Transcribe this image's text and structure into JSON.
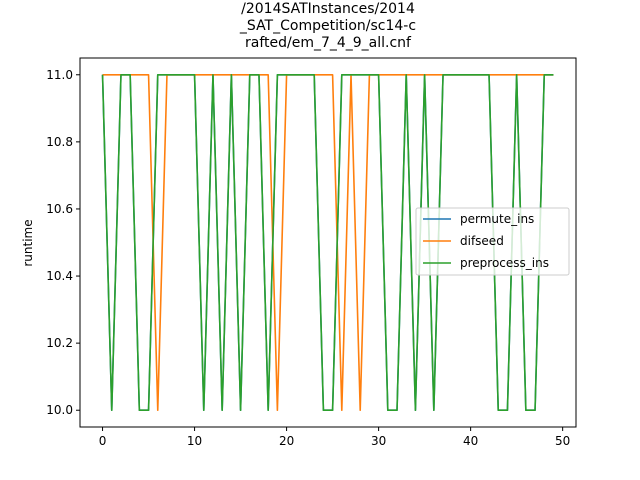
{
  "chart_data": {
    "type": "line",
    "title_lines": [
      "/2014SATInstances/2014",
      "_SAT_Competition/sc14-c",
      "rafted/em_7_4_9_all.cnf"
    ],
    "xlabel": "",
    "ylabel": "runtime",
    "xlim": [
      -2.45,
      51.45
    ],
    "ylim": [
      9.95,
      11.05
    ],
    "xticks": [
      0,
      10,
      20,
      30,
      40,
      50
    ],
    "yticks": [
      10.0,
      10.2,
      10.4,
      10.6,
      10.8,
      11.0
    ],
    "xtick_labels": [
      "0",
      "10",
      "20",
      "30",
      "40",
      "50"
    ],
    "ytick_labels": [
      "10.0",
      "10.2",
      "10.4",
      "10.6",
      "10.8",
      "11.0"
    ],
    "legend_position": "center-right",
    "x": [
      0,
      1,
      2,
      3,
      4,
      5,
      6,
      7,
      8,
      9,
      10,
      11,
      12,
      13,
      14,
      15,
      16,
      17,
      18,
      19,
      20,
      21,
      22,
      23,
      24,
      25,
      26,
      27,
      28,
      29,
      30,
      31,
      32,
      33,
      34,
      35,
      36,
      37,
      38,
      39,
      40,
      41,
      42,
      43,
      44,
      45,
      46,
      47,
      48,
      49
    ],
    "series": [
      {
        "name": "permute_ins",
        "color": "#1f77b4",
        "values": [
          11,
          10,
          11,
          11,
          10,
          10,
          11,
          11,
          11,
          11,
          11,
          10,
          11,
          10,
          11,
          10,
          11,
          11,
          10,
          11,
          11,
          11,
          11,
          11,
          10,
          10,
          11,
          11,
          11,
          11,
          11,
          10,
          10,
          11,
          10,
          11,
          10,
          11,
          11,
          11,
          11,
          11,
          11,
          10,
          10,
          11,
          10,
          10,
          11,
          11
        ]
      },
      {
        "name": "difseed",
        "color": "#ff7f0e",
        "values": [
          11,
          11,
          11,
          11,
          11,
          11,
          10,
          11,
          11,
          11,
          11,
          11,
          11,
          11,
          11,
          11,
          11,
          11,
          11,
          10,
          11,
          11,
          11,
          11,
          11,
          11,
          10,
          11,
          10,
          11,
          11,
          11,
          11,
          11,
          11,
          11,
          11,
          11,
          11,
          11,
          11,
          11,
          11,
          11,
          11,
          11,
          11,
          11,
          11,
          11
        ]
      },
      {
        "name": "preprocess_ins",
        "color": "#2ca02c",
        "values": [
          11,
          10,
          11,
          11,
          10,
          10,
          11,
          11,
          11,
          11,
          11,
          10,
          11,
          10,
          11,
          10,
          11,
          11,
          10,
          11,
          11,
          11,
          11,
          11,
          10,
          10,
          11,
          11,
          11,
          11,
          11,
          10,
          10,
          11,
          10,
          11,
          10,
          11,
          11,
          11,
          11,
          11,
          11,
          10,
          10,
          11,
          10,
          10,
          11,
          11
        ]
      }
    ]
  }
}
